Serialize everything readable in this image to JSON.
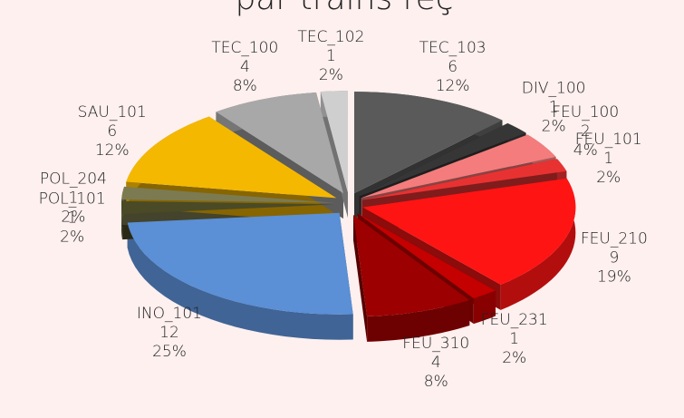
{
  "chart_data": {
    "type": "pie",
    "title": "par trains reç",
    "categories": [
      "TEC_103",
      "DIV_100",
      "FEU_100",
      "FEU_101",
      "FEU_210",
      "FEU_231",
      "FEU_310",
      "INO_101",
      "POL_101",
      "POL_204",
      "SAU_101",
      "TEC_100",
      "TEC_102"
    ],
    "values": [
      6,
      1,
      2,
      1,
      9,
      1,
      4,
      12,
      1,
      1,
      6,
      4,
      1
    ],
    "percent_labels": [
      "12%",
      "2%",
      "4%",
      "2%",
      "19%",
      "2%",
      "8%",
      "25%",
      "2%",
      "2%",
      "12%",
      "8%",
      "2%"
    ],
    "colors": [
      "#5a5a5a",
      "#363636",
      "#f47c7c",
      "#e83232",
      "#ff1414",
      "#c40000",
      "#9c0000",
      "#5b8fd6",
      "#4a4a26",
      "#7c7a50",
      "#f5b800",
      "#a8a8a8",
      "#cfcfcf"
    ]
  }
}
